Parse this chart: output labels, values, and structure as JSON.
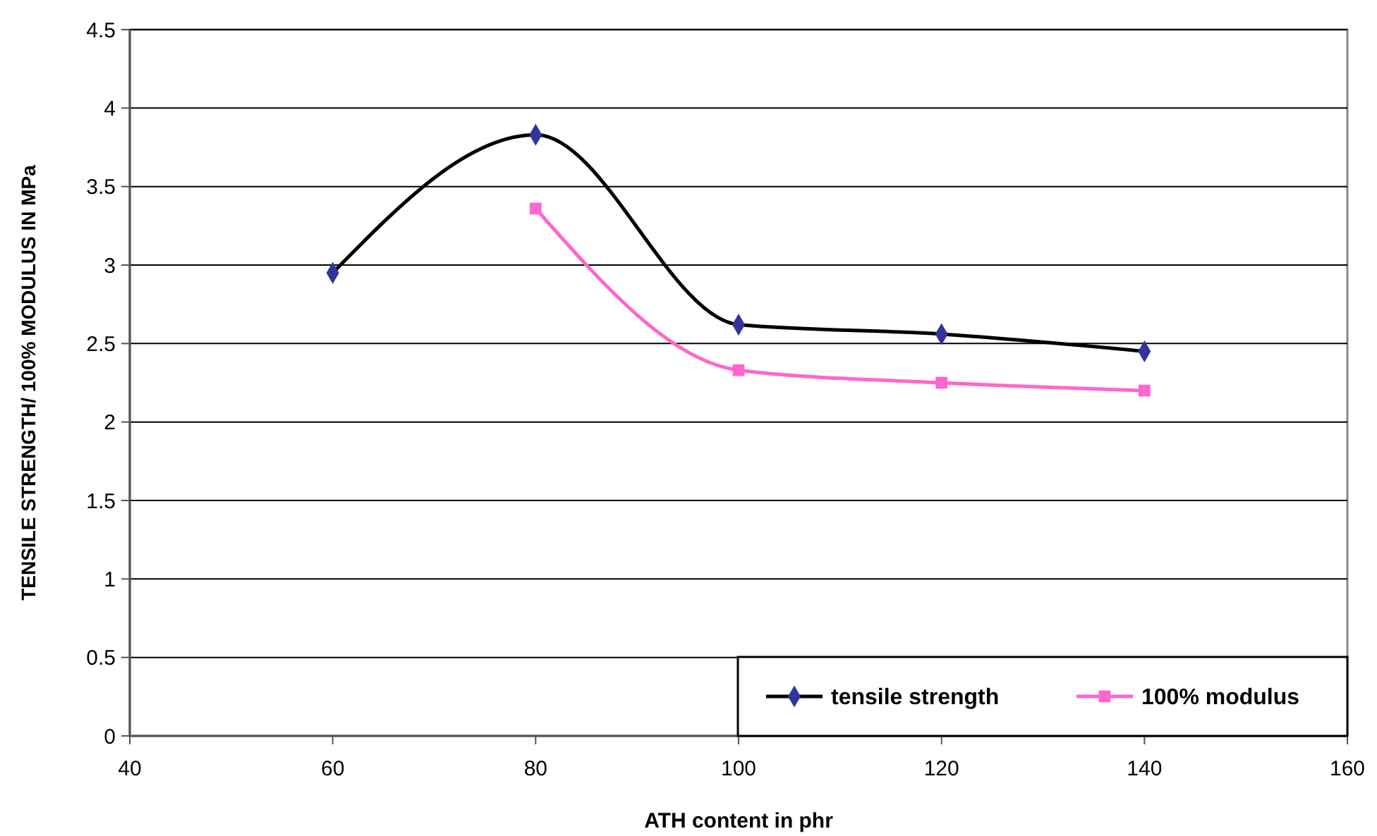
{
  "chart_data": {
    "type": "line",
    "xlabel": "ATH content in phr",
    "ylabel": "TENSILE STRENGTH/ 100% MODULUS IN MPa",
    "xlim": [
      40,
      160
    ],
    "xticks": [
      40,
      60,
      80,
      100,
      120,
      140,
      160
    ],
    "ylim": [
      0,
      4.5
    ],
    "yticks": [
      0,
      0.5,
      1,
      1.5,
      2,
      2.5,
      3,
      3.5,
      4,
      4.5
    ],
    "grid": "y",
    "legend": "bottom right",
    "series": [
      {
        "name": "tensile strength",
        "color": "#000000",
        "colors": [
          "#333399",
          "#333399",
          "#333399",
          "#333399",
          "#333399"
        ],
        "marker": "diamond",
        "x": [
          60,
          80,
          100,
          120,
          140
        ],
        "values": [
          2.95,
          3.83,
          2.62,
          2.56,
          2.45
        ]
      },
      {
        "name": "100% modulus",
        "color": "#ff66cc",
        "colors": [
          "#ff66cc",
          "#ff66cc",
          "#ff66cc",
          "#ff66cc"
        ],
        "marker": "square",
        "x": [
          80,
          100,
          120,
          140
        ],
        "values": [
          3.36,
          2.33,
          2.25,
          2.2
        ]
      }
    ]
  }
}
